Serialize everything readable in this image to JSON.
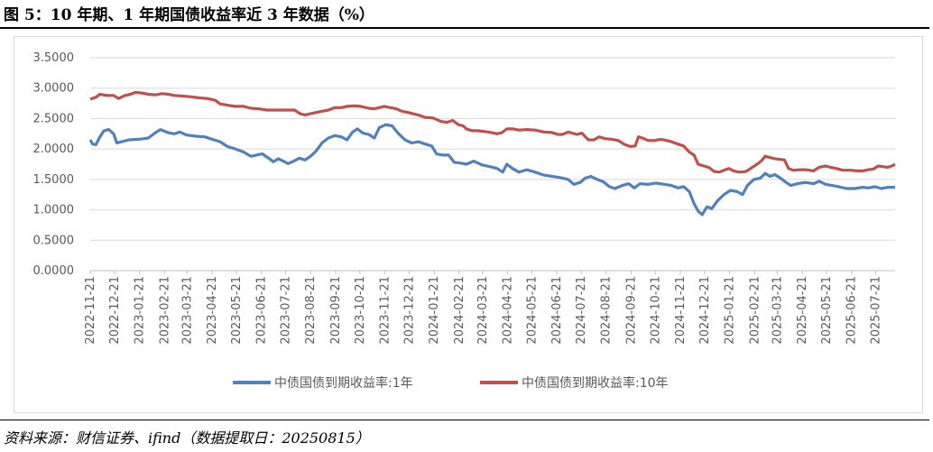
{
  "figure_title": "图 5：10 年期、1 年期国债收益率近 3 年数据（%）",
  "source_note": "资料来源：财信证券、ifind（数据提取日：20250815）",
  "colors": {
    "series_1y": "#4F81BD",
    "series_10y": "#C0504D",
    "grid": "#d9d9d9",
    "axis": "#bfbfbf",
    "text": "#595959"
  },
  "chart_data": {
    "type": "line",
    "title": "",
    "xlabel": "",
    "ylabel": "",
    "ylim": [
      0,
      3.5
    ],
    "yticks": [
      "0.0000",
      "0.5000",
      "1.0000",
      "1.5000",
      "2.0000",
      "2.5000",
      "3.0000",
      "3.5000"
    ],
    "categories": [
      "2022-11-21",
      "2022-12-21",
      "2023-01-21",
      "2023-02-21",
      "2023-03-21",
      "2023-04-21",
      "2023-05-21",
      "2023-06-21",
      "2023-07-21",
      "2023-08-21",
      "2023-09-21",
      "2023-10-21",
      "2023-11-21",
      "2023-12-21",
      "2024-01-21",
      "2024-02-21",
      "2024-03-21",
      "2024-04-21",
      "2024-05-21",
      "2024-06-21",
      "2024-07-21",
      "2024-08-21",
      "2024-09-21",
      "2024-10-21",
      "2024-11-21",
      "2024-12-21",
      "2025-01-21",
      "2025-02-21",
      "2025-03-21",
      "2025-04-21",
      "2025-05-21",
      "2025-06-21",
      "2025-07-21"
    ],
    "grid": true,
    "legend_position": "bottom",
    "series": [
      {
        "name": "中债国债到期收益率:1年",
        "color": "#4F81BD",
        "points": [
          [
            "2022-11-21",
            2.15
          ],
          [
            "2022-11-24",
            2.08
          ],
          [
            "2022-11-28",
            2.07
          ],
          [
            "2022-12-03",
            2.2
          ],
          [
            "2022-12-08",
            2.3
          ],
          [
            "2022-12-14",
            2.32
          ],
          [
            "2022-12-20",
            2.25
          ],
          [
            "2022-12-24",
            2.1
          ],
          [
            "2022-12-30",
            2.12
          ],
          [
            "2023-01-08",
            2.15
          ],
          [
            "2023-01-20",
            2.16
          ],
          [
            "2023-02-01",
            2.18
          ],
          [
            "2023-02-10",
            2.27
          ],
          [
            "2023-02-16",
            2.32
          ],
          [
            "2023-02-25",
            2.27
          ],
          [
            "2023-03-05",
            2.25
          ],
          [
            "2023-03-12",
            2.28
          ],
          [
            "2023-03-20",
            2.23
          ],
          [
            "2023-04-01",
            2.21
          ],
          [
            "2023-04-12",
            2.2
          ],
          [
            "2023-04-21",
            2.16
          ],
          [
            "2023-05-01",
            2.12
          ],
          [
            "2023-05-10",
            2.04
          ],
          [
            "2023-05-20",
            2.0
          ],
          [
            "2023-05-30",
            1.95
          ],
          [
            "2023-06-08",
            1.88
          ],
          [
            "2023-06-15",
            1.9
          ],
          [
            "2023-06-22",
            1.92
          ],
          [
            "2023-06-30",
            1.85
          ],
          [
            "2023-07-06",
            1.79
          ],
          [
            "2023-07-12",
            1.84
          ],
          [
            "2023-07-18",
            1.8
          ],
          [
            "2023-07-24",
            1.76
          ],
          [
            "2023-07-31",
            1.8
          ],
          [
            "2023-08-07",
            1.85
          ],
          [
            "2023-08-14",
            1.82
          ],
          [
            "2023-08-21",
            1.88
          ],
          [
            "2023-08-28",
            1.97
          ],
          [
            "2023-09-04",
            2.1
          ],
          [
            "2023-09-12",
            2.18
          ],
          [
            "2023-09-20",
            2.22
          ],
          [
            "2023-09-28",
            2.2
          ],
          [
            "2023-10-05",
            2.15
          ],
          [
            "2023-10-12",
            2.28
          ],
          [
            "2023-10-18",
            2.33
          ],
          [
            "2023-10-25",
            2.26
          ],
          [
            "2023-11-01",
            2.24
          ],
          [
            "2023-11-08",
            2.18
          ],
          [
            "2023-11-14",
            2.35
          ],
          [
            "2023-11-22",
            2.4
          ],
          [
            "2023-11-30",
            2.38
          ],
          [
            "2023-12-08",
            2.25
          ],
          [
            "2023-12-16",
            2.15
          ],
          [
            "2023-12-24",
            2.1
          ],
          [
            "2024-01-02",
            2.12
          ],
          [
            "2024-01-10",
            2.08
          ],
          [
            "2024-01-18",
            2.05
          ],
          [
            "2024-01-24",
            1.92
          ],
          [
            "2024-02-01",
            1.9
          ],
          [
            "2024-02-08",
            1.9
          ],
          [
            "2024-02-15",
            1.78
          ],
          [
            "2024-02-22",
            1.77
          ],
          [
            "2024-03-01",
            1.75
          ],
          [
            "2024-03-10",
            1.8
          ],
          [
            "2024-03-20",
            1.74
          ],
          [
            "2024-03-30",
            1.71
          ],
          [
            "2024-04-08",
            1.68
          ],
          [
            "2024-04-15",
            1.62
          ],
          [
            "2024-04-20",
            1.75
          ],
          [
            "2024-04-27",
            1.68
          ],
          [
            "2024-05-05",
            1.62
          ],
          [
            "2024-05-15",
            1.66
          ],
          [
            "2024-05-25",
            1.62
          ],
          [
            "2024-06-05",
            1.57
          ],
          [
            "2024-06-15",
            1.55
          ],
          [
            "2024-06-25",
            1.53
          ],
          [
            "2024-07-05",
            1.5
          ],
          [
            "2024-07-12",
            1.42
          ],
          [
            "2024-07-20",
            1.45
          ],
          [
            "2024-07-26",
            1.52
          ],
          [
            "2024-08-02",
            1.55
          ],
          [
            "2024-08-10",
            1.5
          ],
          [
            "2024-08-18",
            1.46
          ],
          [
            "2024-08-25",
            1.38
          ],
          [
            "2024-09-01",
            1.35
          ],
          [
            "2024-09-10",
            1.4
          ],
          [
            "2024-09-18",
            1.43
          ],
          [
            "2024-09-25",
            1.36
          ],
          [
            "2024-10-02",
            1.43
          ],
          [
            "2024-10-12",
            1.42
          ],
          [
            "2024-10-22",
            1.44
          ],
          [
            "2024-11-01",
            1.42
          ],
          [
            "2024-11-10",
            1.4
          ],
          [
            "2024-11-18",
            1.36
          ],
          [
            "2024-11-25",
            1.38
          ],
          [
            "2024-12-02",
            1.3
          ],
          [
            "2024-12-08",
            1.1
          ],
          [
            "2024-12-13",
            0.98
          ],
          [
            "2024-12-18",
            0.92
          ],
          [
            "2024-12-24",
            1.05
          ],
          [
            "2024-12-30",
            1.02
          ],
          [
            "2025-01-06",
            1.15
          ],
          [
            "2025-01-14",
            1.25
          ],
          [
            "2025-01-22",
            1.32
          ],
          [
            "2025-01-30",
            1.3
          ],
          [
            "2025-02-06",
            1.25
          ],
          [
            "2025-02-12",
            1.4
          ],
          [
            "2025-02-20",
            1.5
          ],
          [
            "2025-02-28",
            1.52
          ],
          [
            "2025-03-06",
            1.6
          ],
          [
            "2025-03-12",
            1.55
          ],
          [
            "2025-03-18",
            1.58
          ],
          [
            "2025-03-25",
            1.52
          ],
          [
            "2025-04-01",
            1.45
          ],
          [
            "2025-04-07",
            1.4
          ],
          [
            "2025-04-15",
            1.43
          ],
          [
            "2025-04-25",
            1.45
          ],
          [
            "2025-05-05",
            1.43
          ],
          [
            "2025-05-12",
            1.47
          ],
          [
            "2025-05-20",
            1.42
          ],
          [
            "2025-05-28",
            1.4
          ],
          [
            "2025-06-05",
            1.38
          ],
          [
            "2025-06-15",
            1.35
          ],
          [
            "2025-06-25",
            1.35
          ],
          [
            "2025-07-05",
            1.37
          ],
          [
            "2025-07-12",
            1.36
          ],
          [
            "2025-07-20",
            1.38
          ],
          [
            "2025-07-28",
            1.35
          ],
          [
            "2025-08-05",
            1.37
          ],
          [
            "2025-08-14",
            1.37
          ]
        ]
      },
      {
        "name": "中债国债到期收益率:10年",
        "color": "#C0504D",
        "points": [
          [
            "2022-11-21",
            2.82
          ],
          [
            "2022-11-28",
            2.85
          ],
          [
            "2022-12-03",
            2.9
          ],
          [
            "2022-12-12",
            2.88
          ],
          [
            "2022-12-20",
            2.88
          ],
          [
            "2022-12-26",
            2.83
          ],
          [
            "2023-01-03",
            2.88
          ],
          [
            "2023-01-10",
            2.9
          ],
          [
            "2023-01-16",
            2.93
          ],
          [
            "2023-01-24",
            2.92
          ],
          [
            "2023-02-01",
            2.9
          ],
          [
            "2023-02-10",
            2.89
          ],
          [
            "2023-02-18",
            2.91
          ],
          [
            "2023-02-26",
            2.9
          ],
          [
            "2023-03-05",
            2.88
          ],
          [
            "2023-03-15",
            2.87
          ],
          [
            "2023-03-25",
            2.86
          ],
          [
            "2023-04-05",
            2.84
          ],
          [
            "2023-04-15",
            2.83
          ],
          [
            "2023-04-25",
            2.8
          ],
          [
            "2023-05-01",
            2.74
          ],
          [
            "2023-05-10",
            2.72
          ],
          [
            "2023-05-20",
            2.7
          ],
          [
            "2023-05-30",
            2.7
          ],
          [
            "2023-06-08",
            2.67
          ],
          [
            "2023-06-18",
            2.66
          ],
          [
            "2023-06-28",
            2.64
          ],
          [
            "2023-07-05",
            2.64
          ],
          [
            "2023-07-15",
            2.64
          ],
          [
            "2023-07-25",
            2.64
          ],
          [
            "2023-08-01",
            2.64
          ],
          [
            "2023-08-08",
            2.58
          ],
          [
            "2023-08-14",
            2.56
          ],
          [
            "2023-08-21",
            2.58
          ],
          [
            "2023-08-28",
            2.6
          ],
          [
            "2023-09-04",
            2.62
          ],
          [
            "2023-09-12",
            2.64
          ],
          [
            "2023-09-20",
            2.68
          ],
          [
            "2023-09-28",
            2.68
          ],
          [
            "2023-10-05",
            2.7
          ],
          [
            "2023-10-15",
            2.71
          ],
          [
            "2023-10-22",
            2.7
          ],
          [
            "2023-11-01",
            2.67
          ],
          [
            "2023-11-08",
            2.66
          ],
          [
            "2023-11-14",
            2.68
          ],
          [
            "2023-11-20",
            2.7
          ],
          [
            "2023-11-28",
            2.68
          ],
          [
            "2023-12-05",
            2.66
          ],
          [
            "2023-12-12",
            2.62
          ],
          [
            "2023-12-20",
            2.6
          ],
          [
            "2024-01-01",
            2.56
          ],
          [
            "2024-01-10",
            2.52
          ],
          [
            "2024-01-20",
            2.51
          ],
          [
            "2024-01-30",
            2.45
          ],
          [
            "2024-02-06",
            2.44
          ],
          [
            "2024-02-13",
            2.47
          ],
          [
            "2024-02-20",
            2.4
          ],
          [
            "2024-02-26",
            2.38
          ],
          [
            "2024-03-01",
            2.33
          ],
          [
            "2024-03-08",
            2.3
          ],
          [
            "2024-03-15",
            2.3
          ],
          [
            "2024-03-22",
            2.29
          ],
          [
            "2024-04-01",
            2.27
          ],
          [
            "2024-04-08",
            2.25
          ],
          [
            "2024-04-14",
            2.27
          ],
          [
            "2024-04-20",
            2.33
          ],
          [
            "2024-04-28",
            2.33
          ],
          [
            "2024-05-05",
            2.31
          ],
          [
            "2024-05-15",
            2.32
          ],
          [
            "2024-05-25",
            2.31
          ],
          [
            "2024-06-05",
            2.28
          ],
          [
            "2024-06-15",
            2.27
          ],
          [
            "2024-06-22",
            2.24
          ],
          [
            "2024-06-28",
            2.24
          ],
          [
            "2024-07-05",
            2.28
          ],
          [
            "2024-07-10",
            2.26
          ],
          [
            "2024-07-16",
            2.24
          ],
          [
            "2024-07-22",
            2.26
          ],
          [
            "2024-07-30",
            2.15
          ],
          [
            "2024-08-06",
            2.15
          ],
          [
            "2024-08-12",
            2.2
          ],
          [
            "2024-08-20",
            2.17
          ],
          [
            "2024-08-28",
            2.16
          ],
          [
            "2024-09-05",
            2.14
          ],
          [
            "2024-09-12",
            2.08
          ],
          [
            "2024-09-20",
            2.04
          ],
          [
            "2024-09-26",
            2.05
          ],
          [
            "2024-09-30",
            2.2
          ],
          [
            "2024-10-05",
            2.18
          ],
          [
            "2024-10-12",
            2.14
          ],
          [
            "2024-10-20",
            2.14
          ],
          [
            "2024-10-28",
            2.16
          ],
          [
            "2024-11-04",
            2.14
          ],
          [
            "2024-11-10",
            2.12
          ],
          [
            "2024-11-18",
            2.08
          ],
          [
            "2024-11-25",
            2.05
          ],
          [
            "2024-12-02",
            1.95
          ],
          [
            "2024-12-08",
            1.9
          ],
          [
            "2024-12-13",
            1.75
          ],
          [
            "2024-12-20",
            1.72
          ],
          [
            "2024-12-26",
            1.7
          ],
          [
            "2025-01-02",
            1.63
          ],
          [
            "2025-01-08",
            1.62
          ],
          [
            "2025-01-14",
            1.65
          ],
          [
            "2025-01-20",
            1.68
          ],
          [
            "2025-01-26",
            1.64
          ],
          [
            "2025-02-02",
            1.62
          ],
          [
            "2025-02-10",
            1.63
          ],
          [
            "2025-02-16",
            1.68
          ],
          [
            "2025-02-24",
            1.75
          ],
          [
            "2025-03-01",
            1.8
          ],
          [
            "2025-03-06",
            1.88
          ],
          [
            "2025-03-12",
            1.86
          ],
          [
            "2025-03-18",
            1.84
          ],
          [
            "2025-03-24",
            1.83
          ],
          [
            "2025-03-30",
            1.82
          ],
          [
            "2025-04-04",
            1.68
          ],
          [
            "2025-04-10",
            1.65
          ],
          [
            "2025-04-18",
            1.66
          ],
          [
            "2025-04-25",
            1.66
          ],
          [
            "2025-05-05",
            1.64
          ],
          [
            "2025-05-12",
            1.7
          ],
          [
            "2025-05-20",
            1.72
          ],
          [
            "2025-05-26",
            1.7
          ],
          [
            "2025-06-02",
            1.68
          ],
          [
            "2025-06-10",
            1.65
          ],
          [
            "2025-06-20",
            1.65
          ],
          [
            "2025-06-28",
            1.64
          ],
          [
            "2025-07-05",
            1.64
          ],
          [
            "2025-07-12",
            1.66
          ],
          [
            "2025-07-18",
            1.67
          ],
          [
            "2025-07-24",
            1.72
          ],
          [
            "2025-07-30",
            1.71
          ],
          [
            "2025-08-05",
            1.7
          ],
          [
            "2025-08-10",
            1.72
          ],
          [
            "2025-08-14",
            1.75
          ]
        ]
      }
    ]
  }
}
